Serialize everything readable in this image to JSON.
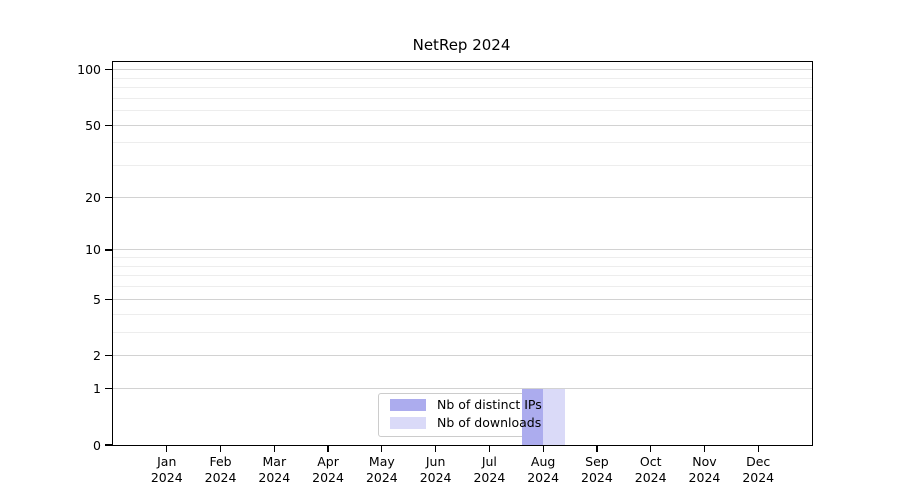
{
  "title": "NetRep 2024",
  "legend": {
    "items": [
      {
        "label": "Nb of distinct IPs",
        "color": "#acacee"
      },
      {
        "label": "Nb of downloads",
        "color": "#dadaf8"
      }
    ]
  },
  "chart_data": {
    "type": "bar",
    "title": "NetRep 2024",
    "categories": [
      "Jan 2024",
      "Feb 2024",
      "Mar 2024",
      "Apr 2024",
      "May 2024",
      "Jun 2024",
      "Jul 2024",
      "Aug 2024",
      "Sep 2024",
      "Oct 2024",
      "Nov 2024",
      "Dec 2024"
    ],
    "series": [
      {
        "name": "Nb of distinct IPs",
        "color": "#acacee",
        "values": [
          0,
          0,
          0,
          0,
          0,
          0,
          0,
          1,
          0,
          0,
          0,
          0
        ]
      },
      {
        "name": "Nb of downloads",
        "color": "#dadaf8",
        "values": [
          0,
          0,
          0,
          0,
          0,
          0,
          0,
          1,
          0,
          0,
          0,
          0
        ]
      }
    ],
    "xlabel": "",
    "ylabel": "",
    "yscale": "log1p",
    "ylim": [
      0,
      110
    ],
    "y_major_ticks": [
      0,
      1,
      2,
      5,
      10,
      20,
      50,
      100
    ],
    "y_minor_gridlines": [
      3,
      4,
      6,
      7,
      8,
      9,
      30,
      40,
      60,
      70,
      80,
      90
    ],
    "grid": true,
    "legend_position": "lower center"
  },
  "colors": {
    "major_grid": "#d2d2d2",
    "minor_grid": "#ededed",
    "axis": "#000000",
    "background": "#ffffff",
    "legend_border": "#cccccc",
    "legend_bg": "#ffffff"
  }
}
